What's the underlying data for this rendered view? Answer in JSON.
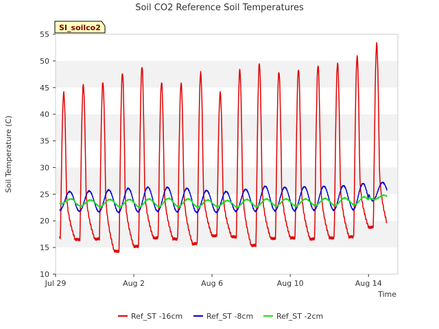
{
  "chart_data": {
    "type": "line",
    "title": "Soil CO2 Reference Soil Temperatures",
    "xlabel": "Time",
    "ylabel": "Soil Temperature (C)",
    "station_label": "SI_soilco2",
    "xlim": [
      "2024-07-29T00:00",
      "2024-08-15T12:00"
    ],
    "ylim": [
      10,
      55
    ],
    "yticks": [
      10,
      15,
      20,
      25,
      30,
      35,
      40,
      45,
      50,
      55
    ],
    "xticks": [
      {
        "x": "2024-07-29",
        "label": "Jul 29"
      },
      {
        "x": "2024-08-02",
        "label": "Aug 2"
      },
      {
        "x": "2024-08-06",
        "label": "Aug 6"
      },
      {
        "x": "2024-08-10",
        "label": "Aug 10"
      },
      {
        "x": "2024-08-14",
        "label": "Aug 14"
      }
    ],
    "grid": "alternating horizontal bands",
    "legend_position": "bottom-center",
    "series": [
      {
        "name": "Ref_ST -16cm",
        "color": "#e00000",
        "daily_min": [
          16.8,
          16.5,
          16.6,
          14.3,
          15.2,
          16.8,
          16.6,
          15.7,
          17.2,
          17.0,
          15.4,
          16.7,
          16.8,
          16.6,
          16.8,
          17.0,
          18.8
        ],
        "daily_max": [
          44.0,
          45.5,
          46.0,
          47.8,
          49.0,
          46.0,
          45.8,
          47.8,
          44.0,
          48.3,
          49.5,
          48.0,
          48.5,
          49.2,
          49.6,
          50.8,
          53.2
        ]
      },
      {
        "name": "Ref_ST -8cm",
        "color": "#0000cc",
        "daily_min": [
          22.0,
          21.8,
          21.7,
          21.6,
          21.7,
          21.8,
          21.7,
          21.6,
          21.6,
          21.8,
          21.8,
          21.9,
          21.9,
          22.0,
          22.0,
          22.1,
          23.8
        ],
        "daily_max": [
          25.5,
          25.6,
          25.8,
          26.1,
          26.3,
          26.3,
          26.1,
          25.7,
          25.5,
          25.9,
          26.5,
          26.3,
          26.4,
          26.5,
          26.6,
          27.0,
          27.2
        ]
      },
      {
        "name": "Ref_ST -2cm",
        "color": "#22dd22",
        "daily_min": [
          23.2,
          22.8,
          22.7,
          22.7,
          22.6,
          22.7,
          22.7,
          22.6,
          22.7,
          22.6,
          22.7,
          22.8,
          22.8,
          22.9,
          22.9,
          23.0,
          24.0
        ],
        "daily_max": [
          24.1,
          23.9,
          24.0,
          24.0,
          24.1,
          24.2,
          24.1,
          23.9,
          23.8,
          24.0,
          24.1,
          24.1,
          24.1,
          24.2,
          24.3,
          24.5,
          24.8
        ]
      }
    ]
  }
}
